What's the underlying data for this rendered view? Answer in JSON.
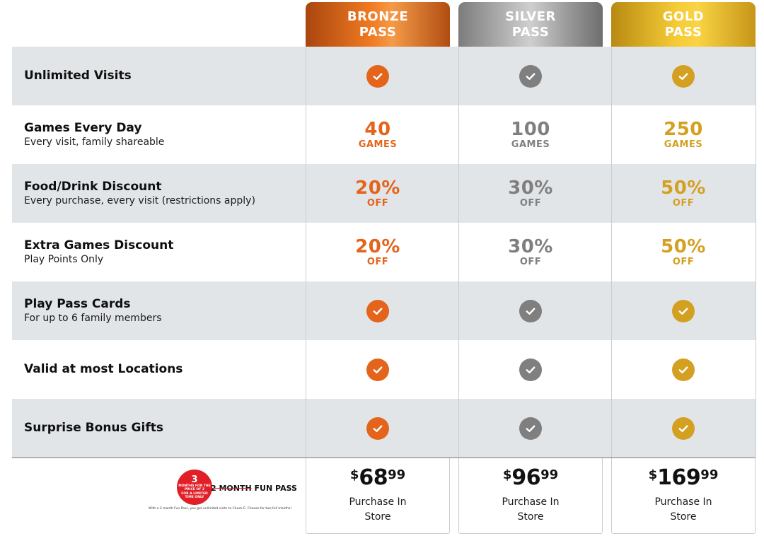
{
  "colors": {
    "bronze": "#e4641c",
    "silver": "#7f7f7f",
    "gold": "#d4a021"
  },
  "passes": [
    {
      "line1": "BRONZE",
      "line2": "PASS",
      "price_currency": "$",
      "price_whole": "68",
      "price_cents": "99",
      "purchase_line1": "Purchase In",
      "purchase_line2": "Store"
    },
    {
      "line1": "SILVER",
      "line2": "PASS",
      "price_currency": "$",
      "price_whole": "96",
      "price_cents": "99",
      "purchase_line1": "Purchase In",
      "purchase_line2": "Store"
    },
    {
      "line1": "GOLD",
      "line2": "PASS",
      "price_currency": "$",
      "price_whole": "169",
      "price_cents": "99",
      "purchase_line1": "Purchase In",
      "purchase_line2": "Store"
    }
  ],
  "rows": [
    {
      "title": "Unlimited Visits",
      "subtitle": "",
      "type": "check",
      "icon": "check-circle-icon"
    },
    {
      "title": "Games Every Day",
      "subtitle": "Every visit, family shareable",
      "type": "value",
      "values": [
        {
          "big": "40",
          "small": "GAMES"
        },
        {
          "big": "100",
          "small": "GAMES"
        },
        {
          "big": "250",
          "small": "GAMES"
        }
      ]
    },
    {
      "title": "Food/Drink Discount",
      "subtitle": "Every purchase, every visit (restrictions apply)",
      "type": "value",
      "values": [
        {
          "big": "20%",
          "small": "OFF"
        },
        {
          "big": "30%",
          "small": "OFF"
        },
        {
          "big": "50%",
          "small": "OFF"
        }
      ]
    },
    {
      "title": "Extra Games Discount",
      "subtitle": "Play Points Only",
      "type": "value",
      "values": [
        {
          "big": "20%",
          "small": "OFF"
        },
        {
          "big": "30%",
          "small": "OFF"
        },
        {
          "big": "50%",
          "small": "OFF"
        }
      ]
    },
    {
      "title": "Play Pass Cards",
      "subtitle": "For up to 6 family members",
      "type": "check",
      "icon": "check-circle-icon"
    },
    {
      "title": "Valid at most Locations",
      "subtitle": "",
      "type": "check",
      "icon": "check-circle-icon"
    },
    {
      "title": "Surprise Bonus Gifts",
      "subtitle": "",
      "type": "check",
      "icon": "check-circle-icon"
    }
  ],
  "promo": {
    "badge_number": "3",
    "badge_line1": "MONTHS FOR THE",
    "badge_line2": "PRICE OF 2",
    "badge_line3": "FOR A LIMITED",
    "badge_line4": "TIME ONLY",
    "title_struck": "2 MONTH",
    "title_rest": " FUN PASS",
    "note": "With a 2 month Fun Pass, you get unlimited visits to Chuck E. Cheese for two full months!"
  }
}
